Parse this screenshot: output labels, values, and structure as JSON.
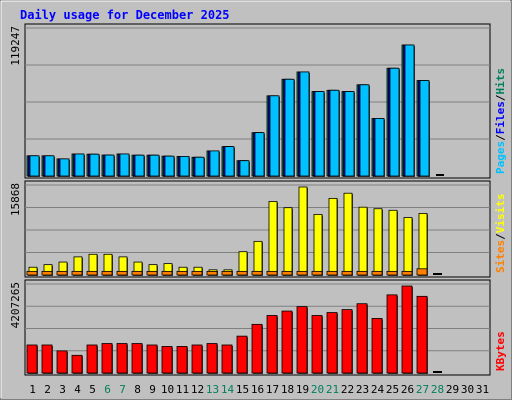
{
  "chart_data": {
    "type": "bar",
    "title": "Daily usage for December 2025",
    "categories": [
      "1",
      "2",
      "3",
      "4",
      "5",
      "6",
      "7",
      "8",
      "9",
      "10",
      "11",
      "12",
      "13",
      "14",
      "15",
      "16",
      "17",
      "18",
      "19",
      "20",
      "21",
      "22",
      "23",
      "24",
      "25",
      "26",
      "27",
      "28",
      "29",
      "30",
      "31"
    ],
    "weekend_days": [
      "6",
      "7",
      "13",
      "14",
      "20",
      "21",
      "27",
      "28"
    ],
    "panels": [
      {
        "id": "hits",
        "axis_max_label": "119247",
        "axis_max": 119247,
        "legend": [
          "Pages",
          "/",
          "Files",
          "/",
          "Hits"
        ],
        "series": [
          {
            "name": "Hits",
            "color": "#00805c",
            "values": [
              16500,
              16500,
              14000,
              18000,
              17800,
              17100,
              18000,
              17000,
              17000,
              16200,
              16000,
              15300,
              20500,
              24000,
              12500,
              35400,
              65500,
              79000,
              85000,
              69000,
              70000,
              69000,
              74500,
              47000,
              88000,
              107000,
              78000,
              0,
              0,
              0,
              0
            ]
          },
          {
            "name": "Files",
            "color": "#0000ff",
            "values": [
              16500,
              16500,
              14000,
              18000,
              17800,
              17100,
              18000,
              17000,
              17000,
              16200,
              16000,
              15300,
              20500,
              24000,
              12500,
              35400,
              65500,
              79000,
              85000,
              69000,
              70000,
              69000,
              74500,
              47000,
              88000,
              107000,
              78000,
              0,
              0,
              0,
              0
            ]
          },
          {
            "name": "Pages",
            "color": "#00c0ff",
            "values": [
              16500,
              16500,
              14000,
              18000,
              17800,
              17100,
              18000,
              17000,
              17000,
              16200,
              16000,
              15300,
              20500,
              24000,
              12500,
              35400,
              65500,
              79000,
              85000,
              69000,
              70000,
              69000,
              74500,
              47000,
              88000,
              107000,
              78000,
              0,
              0,
              0,
              0
            ]
          }
        ]
      },
      {
        "id": "visits",
        "axis_max_label": "15868",
        "axis_max": 15868,
        "legend": [
          "Sites",
          "/",
          "Visits"
        ],
        "series": [
          {
            "name": "Visits",
            "color": "#ffff00",
            "values": [
              1500,
              2000,
              2500,
              3500,
              4000,
              4000,
              3500,
              2500,
              2000,
              2200,
              1500,
              1500,
              1000,
              1000,
              4500,
              6500,
              14200,
              13000,
              17000,
              11700,
              14800,
              15800,
              13100,
              12800,
              12500,
              11100,
              11900,
              0,
              0,
              0,
              0
            ]
          },
          {
            "name": "Sites",
            "color": "#ff8000",
            "values": [
              700,
              700,
              700,
              700,
              700,
              700,
              700,
              700,
              700,
              700,
              700,
              700,
              700,
              700,
              700,
              700,
              700,
              700,
              700,
              700,
              700,
              700,
              700,
              700,
              700,
              700,
              1200,
              0,
              0,
              0,
              0
            ]
          }
        ]
      },
      {
        "id": "kbytes",
        "axis_max_label": "4207265",
        "axis_max": 4207265,
        "legend": [
          "KBytes"
        ],
        "series": [
          {
            "name": "KBytes",
            "color": "#ff0000",
            "values": [
              1900000,
              1900000,
              1500000,
              1200000,
              1900000,
              2000000,
              2000000,
              2000000,
              1900000,
              1800000,
              1800000,
              1900000,
              2000000,
              1900000,
              2500000,
              3300000,
              3900000,
              4200000,
              4500000,
              3900000,
              4100000,
              4300000,
              4700000,
              3700000,
              5300000,
              5900000,
              5200000,
              0,
              0,
              0,
              0
            ]
          }
        ]
      }
    ],
    "colors": {
      "background": "#c0c0c0",
      "title": "#0000ff",
      "label": "#000000",
      "weekend_label": "#00805c",
      "gridline": "#808080",
      "shadow": "#404040"
    }
  }
}
